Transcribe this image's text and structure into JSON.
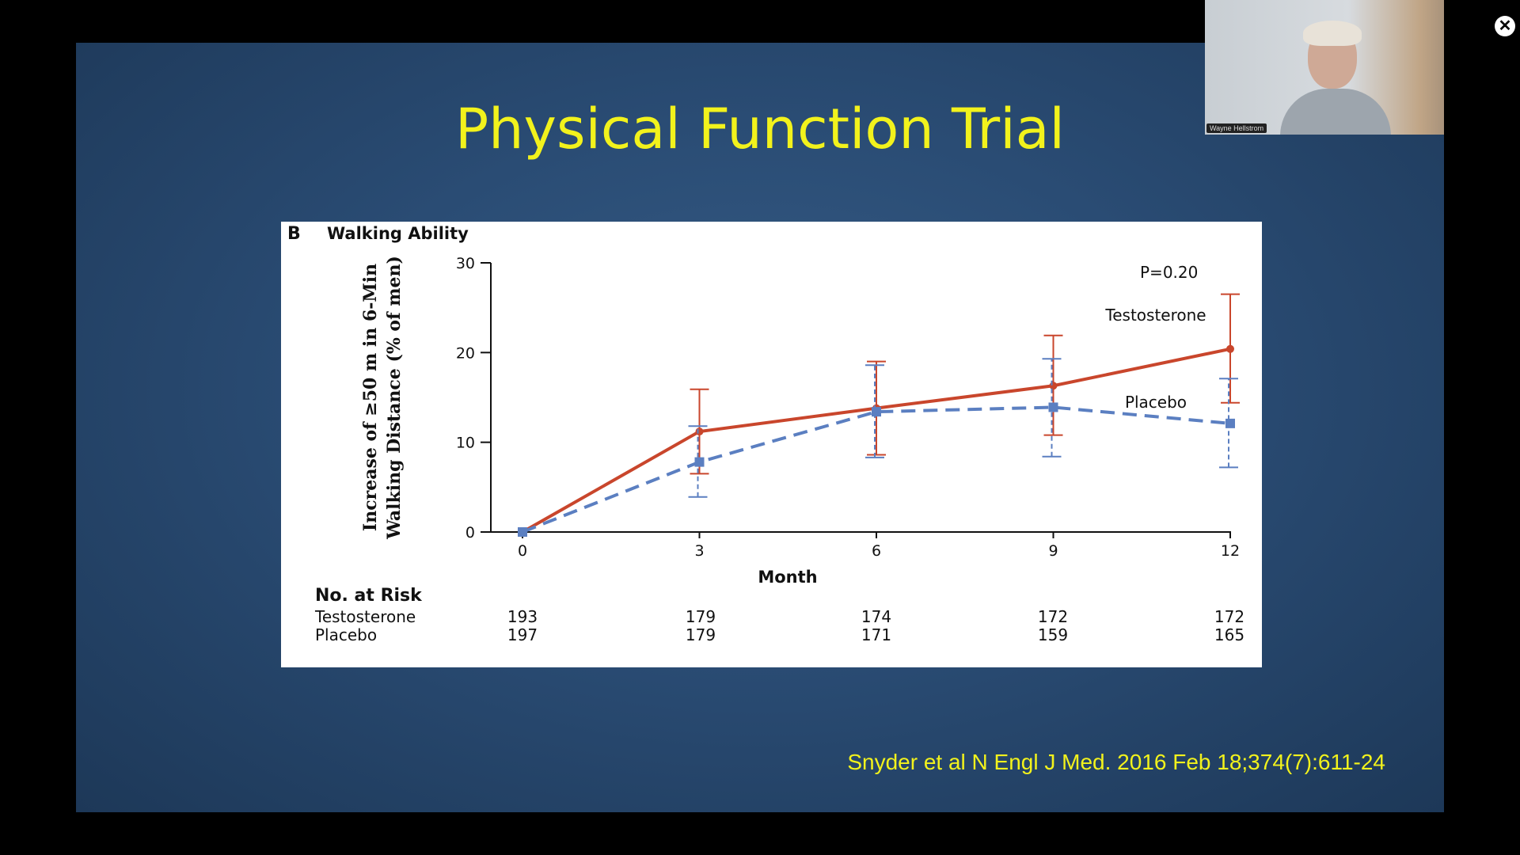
{
  "slide": {
    "title": "Physical Function Trial",
    "citation": "Snyder et al N Engl J Med. 2016 Feb 18;374(7):611-24"
  },
  "webcam": {
    "participant_name": "Wayne Hellstrom"
  },
  "controls": {
    "close_icon": "✕"
  },
  "chart_data": {
    "type": "line",
    "panel_letter": "B",
    "title": "Walking Ability",
    "ylabel_line1": "Increase of ≥50 m in 6-Min",
    "ylabel_line2": "Walking Distance (% of men)",
    "xlabel": "Month",
    "annotation": "P=0.20",
    "x": [
      0,
      3,
      6,
      9,
      12
    ],
    "ylim": [
      0,
      30
    ],
    "yticks": [
      0,
      10,
      20,
      30
    ],
    "series": [
      {
        "name": "Testosterone",
        "color": "#c9462c",
        "style": "solid",
        "values": [
          0,
          11.2,
          13.8,
          16.3,
          20.4
        ],
        "err_low": [
          0,
          6.5,
          8.6,
          10.8,
          14.4
        ],
        "err_high": [
          0,
          15.9,
          19.0,
          21.9,
          26.5
        ]
      },
      {
        "name": "Placebo",
        "color": "#5b7fc1",
        "style": "dashed",
        "values": [
          0,
          7.8,
          13.4,
          13.9,
          12.1
        ],
        "err_low": [
          0,
          3.9,
          8.3,
          8.4,
          7.2
        ],
        "err_high": [
          0,
          11.8,
          18.6,
          19.3,
          17.1
        ]
      }
    ],
    "risk_table": {
      "header": "No. at Risk",
      "rows": [
        {
          "label": "Testosterone",
          "values": [
            "193",
            "179",
            "174",
            "172",
            "172"
          ]
        },
        {
          "label": "Placebo",
          "values": [
            "197",
            "179",
            "171",
            "159",
            "165"
          ]
        }
      ]
    }
  }
}
